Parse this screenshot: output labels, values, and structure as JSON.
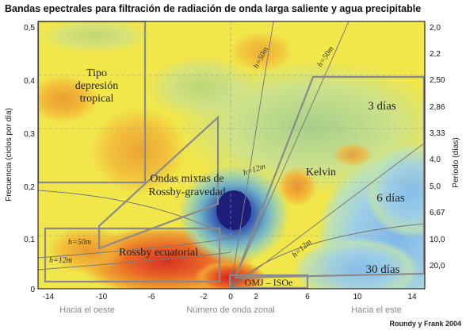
{
  "title": "Bandas epectrales para filtración de radiación de onda larga saliente y agua precipitable",
  "y_left_label": "Frecuencia (ciclos por día)",
  "y_right_label": "Período (días)",
  "y_left_ticks": [
    "0,5",
    "0,4",
    "0,3",
    "0,2",
    "0,1",
    "0"
  ],
  "y_right_ticks": [
    "2,0",
    "2,2",
    "2,50",
    "2,86",
    "3,33",
    "4,0",
    "5,0",
    "6,67",
    "10,0",
    "20,0"
  ],
  "x_ticks": [
    "-14",
    "-10",
    "-6",
    "-2",
    "0",
    "2",
    "6",
    "10",
    "14"
  ],
  "x_center_label": "Número de onda zonal",
  "x_left_label": "Hacia el oeste",
  "x_right_label": "Hacia el este",
  "credit": "Roundy y Frank 2004",
  "regions": {
    "td_line1": "Tipo",
    "td_line2": "depresión",
    "td_line3": "tropical",
    "mrg_line1": "Ondas mixtas de",
    "mrg_line2": "Rossby-gravedad",
    "kelvin": "Kelvin",
    "rossby": "Rossby ecuatorial",
    "mjo": "OMJ – ISOe",
    "d3": "3 días",
    "d6": "6 días",
    "d30": "30 días"
  },
  "wave_labels": {
    "h50_top": "h=50m",
    "h50_right": "h=50m",
    "h12_mid": "h=12m",
    "h12_right": "h=12m",
    "h50_rossby": "h=50m",
    "h12_rossby": "h=12m"
  },
  "colors": {
    "background_field": "#f2e84a",
    "band_outline": "#8a8a8a",
    "low_center": "#1e1e7a",
    "high_center": "#d81e1e"
  }
}
